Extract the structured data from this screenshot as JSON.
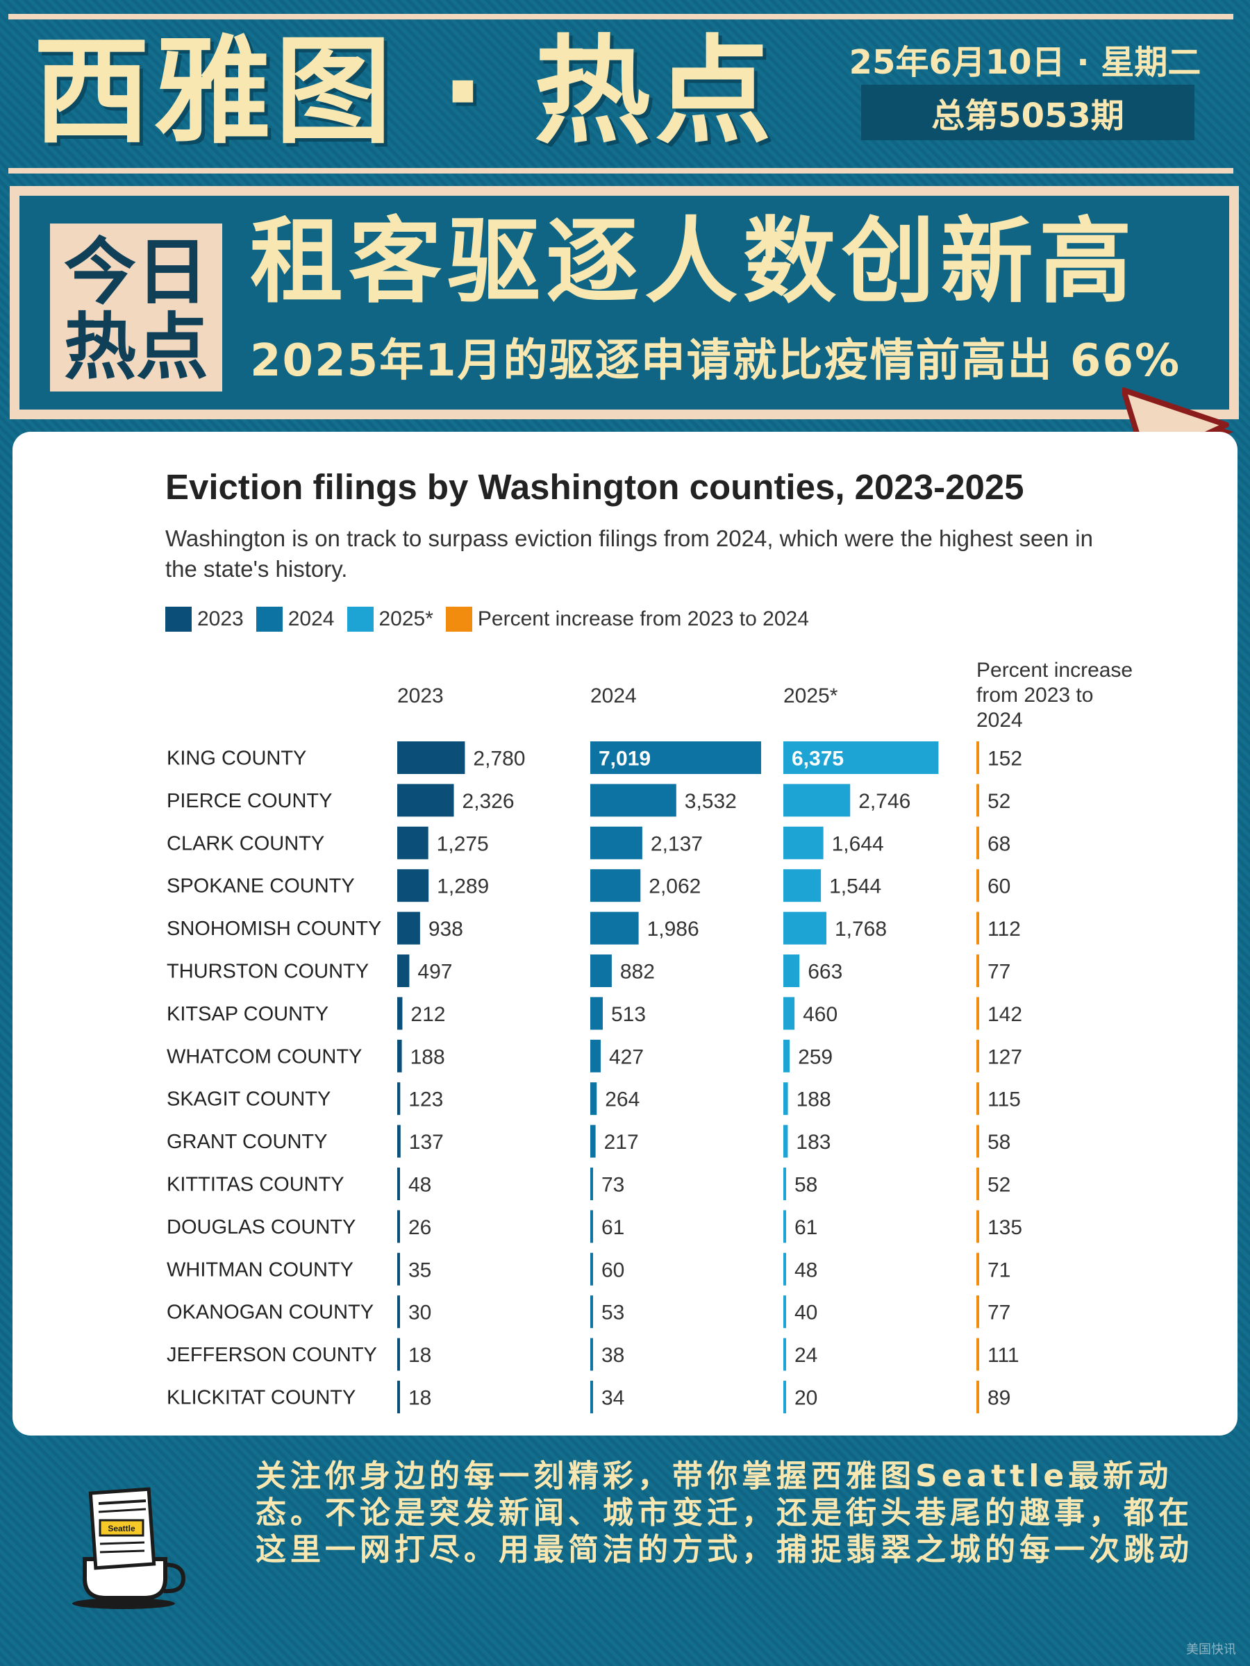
{
  "header": {
    "brand": "西雅图 · 热点",
    "date": "25年6月10日 · 星期二",
    "issue": "总第5053期"
  },
  "headline": {
    "tag_line1": "今日",
    "tag_line2": "热点",
    "title": "租客驱逐人数创新高",
    "subtitle": "2025年1月的驱逐申请就比疫情前高出 66%"
  },
  "colors": {
    "y2023": "#0b4f78",
    "y2024": "#0d73a3",
    "y2025": "#1ea4d4",
    "pct": "#f28c0f"
  },
  "chart_data": {
    "type": "bar",
    "title": "Eviction filings by Washington counties, 2023-2025",
    "subtitle": "Washington is on track to surpass eviction filings from 2024, which were the highest seen in the state's history.",
    "legend": [
      "2023",
      "2024",
      "2025*",
      "Percent increase from 2023 to 2024"
    ],
    "column_headers": [
      "2023",
      "2024",
      "2025*"
    ],
    "pct_header": [
      "Percent increase",
      "from 2023 to",
      "2024"
    ],
    "categories": [
      "KING COUNTY",
      "PIERCE COUNTY",
      "CLARK COUNTY",
      "SPOKANE COUNTY",
      "SNOHOMISH COUNTY",
      "THURSTON COUNTY",
      "KITSAP COUNTY",
      "WHATCOM COUNTY",
      "SKAGIT COUNTY",
      "GRANT COUNTY",
      "KITTITAS COUNTY",
      "DOUGLAS COUNTY",
      "WHITMAN COUNTY",
      "OKANOGAN COUNTY",
      "JEFFERSON COUNTY",
      "KLICKITAT COUNTY"
    ],
    "series": [
      {
        "name": "2023",
        "values": [
          2780,
          2326,
          1275,
          1289,
          938,
          497,
          212,
          188,
          123,
          137,
          48,
          26,
          35,
          30,
          18,
          18
        ]
      },
      {
        "name": "2024",
        "values": [
          7019,
          3532,
          2137,
          2062,
          1986,
          882,
          513,
          427,
          264,
          217,
          73,
          61,
          60,
          53,
          38,
          34
        ]
      },
      {
        "name": "2025*",
        "values": [
          6375,
          2746,
          1644,
          1544,
          1768,
          663,
          460,
          259,
          188,
          183,
          58,
          61,
          48,
          40,
          24,
          20
        ]
      }
    ],
    "pct_increase": [
      152,
      52,
      68,
      60,
      112,
      77,
      142,
      127,
      115,
      58,
      52,
      135,
      71,
      77,
      111,
      89
    ],
    "max_value": 7019
  },
  "footer": {
    "text": "关注你身边的每一刻精彩，带你掌握西雅图Seattle最新动态。不论是突发新闻、城市变迁，还是街头巷尾的趣事，都在这里一网打尽。用最简洁的方式，捕捉翡翠之城的每一次跳动",
    "cup_label": "Seattle",
    "watermark": "美国快讯"
  }
}
